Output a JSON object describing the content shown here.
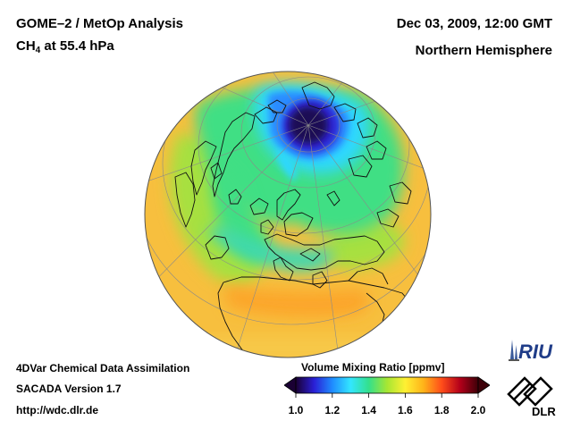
{
  "header": {
    "title": "GOME–2 / MetOp Analysis",
    "subtitle_species": "CH",
    "subtitle_subscript": "4",
    "subtitle_rest": " at 55.4 hPa",
    "datetime": "Dec 03, 2009, 12:00 GMT",
    "region": "Northern Hemisphere"
  },
  "footer": {
    "line1": "4DVar Chemical Data Assimilation",
    "line2": "SACADA Version 1.7",
    "line3": "http://wdc.dlr.de"
  },
  "colorbar": {
    "title": "Volume Mixing Ratio [ppmv]",
    "ticks": [
      "1.0",
      "1.2",
      "1.4",
      "1.6",
      "1.8",
      "2.0"
    ],
    "min": 1.0,
    "max": 2.0,
    "colors": [
      "#1a0033",
      "#2a1fd6",
      "#1f8cff",
      "#33e6ff",
      "#33e08c",
      "#a6e633",
      "#fff033",
      "#ffb319",
      "#ff4d1a",
      "#b3001a",
      "#3d0008"
    ]
  },
  "logos": {
    "riu": "RIU",
    "dlr": "DLR"
  },
  "map": {
    "projection": "orthographic, northern hemisphere",
    "background_value_ppmv": 1.7,
    "polar_vortex_min_ppmv": 1.0,
    "ocean_high_value_ppmv": 1.75
  }
}
